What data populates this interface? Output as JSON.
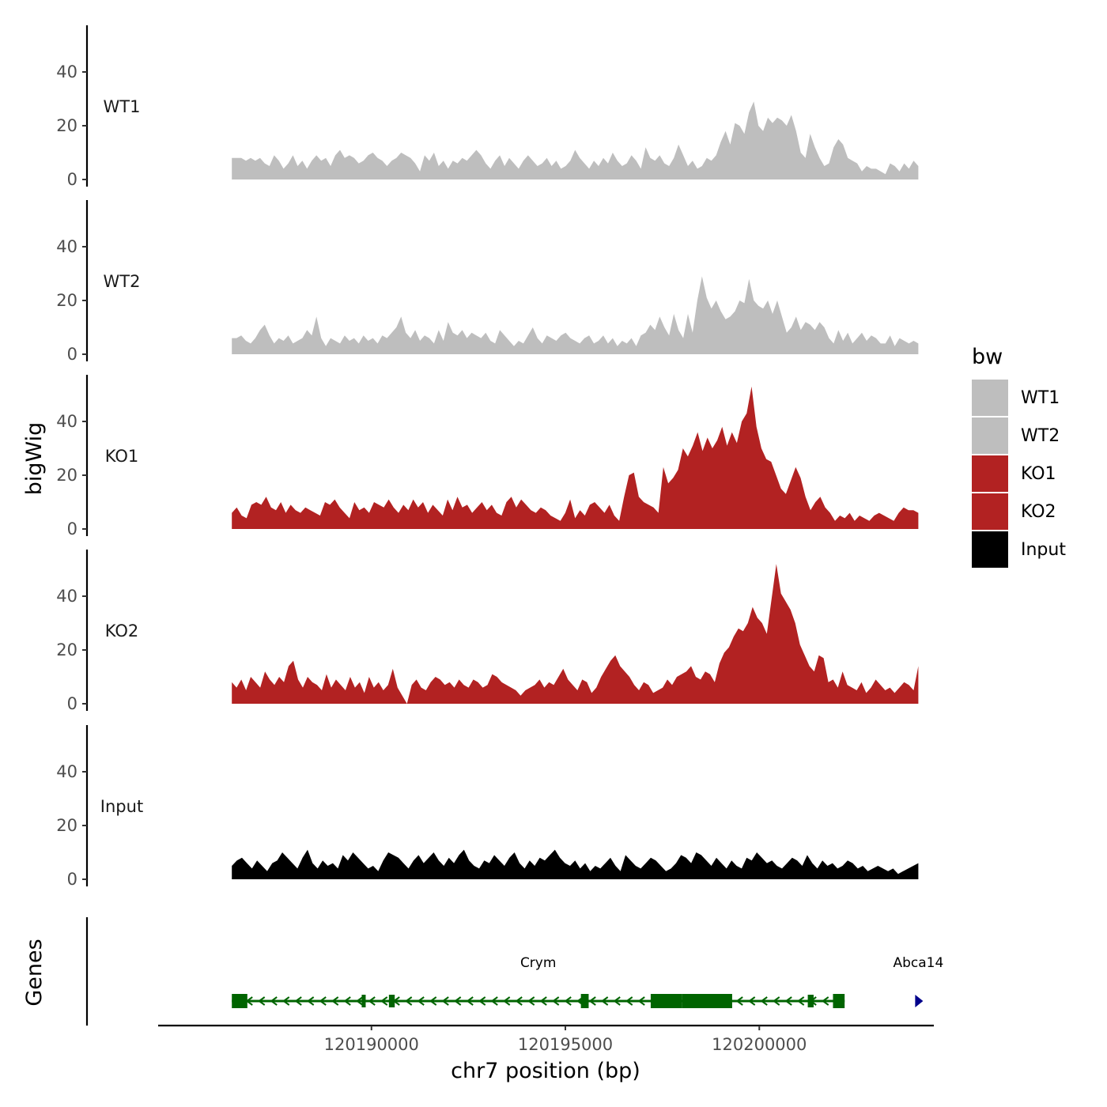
{
  "chart_data": {
    "type": "area",
    "ylabel": "bigWig",
    "xlabel": "chr7 position (bp)",
    "xlim": [
      120184500,
      120204500
    ],
    "x_start": 120186400,
    "x_end": 120204100,
    "ylim": [
      0,
      58
    ],
    "y_ticks": [
      0,
      20,
      40
    ],
    "y_tick_labels": [
      "0",
      "20",
      "40"
    ],
    "x_ticks": [
      120190000,
      120195000,
      120200000
    ],
    "x_tick_labels": [
      "120190000",
      "120195000",
      "120200000"
    ],
    "legend": {
      "title": "bw",
      "position": "right",
      "entries": [
        {
          "name": "WT1",
          "color": "#bebebe"
        },
        {
          "name": "WT2",
          "color": "#bebebe"
        },
        {
          "name": "KO1",
          "color": "#b22222"
        },
        {
          "name": "KO2",
          "color": "#b22222"
        },
        {
          "name": "Input",
          "color": "#000000"
        }
      ]
    },
    "series": [
      {
        "name": "WT1",
        "color": "#bebebe",
        "values": [
          8,
          8,
          8,
          7,
          8,
          7,
          8,
          6,
          5,
          9,
          7,
          4,
          6,
          9,
          5,
          7,
          4,
          7,
          9,
          7,
          8,
          5,
          9,
          11,
          8,
          9,
          8,
          6,
          7,
          9,
          10,
          8,
          7,
          5,
          7,
          8,
          10,
          9,
          8,
          6,
          3,
          9,
          7,
          10,
          5,
          7,
          4,
          7,
          6,
          8,
          7,
          9,
          11,
          9,
          6,
          4,
          7,
          9,
          5,
          8,
          6,
          4,
          7,
          9,
          7,
          5,
          6,
          8,
          5,
          7,
          4,
          5,
          7,
          11,
          8,
          6,
          4,
          7,
          5,
          8,
          6,
          10,
          7,
          5,
          6,
          9,
          7,
          4,
          12,
          8,
          7,
          9,
          6,
          5,
          8,
          13,
          9,
          5,
          7,
          4,
          5,
          8,
          7,
          9,
          14,
          18,
          13,
          21,
          20,
          17,
          25,
          29,
          20,
          18,
          23,
          21,
          23,
          22,
          20,
          24,
          18,
          10,
          8,
          17,
          12,
          8,
          5,
          6,
          12,
          15,
          13,
          8,
          7,
          6,
          3,
          5,
          4,
          4,
          3,
          2,
          6,
          5,
          3,
          6,
          4,
          7,
          5
        ]
      },
      {
        "name": "WT2",
        "color": "#bebebe",
        "values": [
          6,
          6,
          7,
          5,
          4,
          6,
          9,
          11,
          7,
          4,
          6,
          5,
          7,
          4,
          5,
          6,
          9,
          7,
          14,
          6,
          3,
          6,
          5,
          4,
          7,
          5,
          6,
          4,
          7,
          5,
          6,
          4,
          7,
          6,
          8,
          10,
          14,
          8,
          6,
          9,
          5,
          7,
          6,
          4,
          9,
          5,
          12,
          8,
          7,
          9,
          6,
          8,
          7,
          6,
          8,
          5,
          4,
          9,
          7,
          5,
          3,
          5,
          4,
          7,
          10,
          6,
          4,
          7,
          6,
          5,
          7,
          8,
          6,
          5,
          4,
          6,
          7,
          4,
          5,
          7,
          4,
          6,
          3,
          5,
          4,
          6,
          3,
          7,
          8,
          11,
          9,
          14,
          10,
          7,
          15,
          9,
          6,
          15,
          8,
          20,
          29,
          21,
          17,
          20,
          16,
          13,
          14,
          16,
          20,
          19,
          28,
          20,
          18,
          17,
          20,
          15,
          20,
          14,
          8,
          10,
          14,
          9,
          12,
          11,
          9,
          12,
          10,
          6,
          4,
          9,
          5,
          8,
          4,
          6,
          8,
          5,
          7,
          6,
          4,
          4,
          7,
          3,
          6,
          5,
          4,
          5,
          4
        ]
      },
      {
        "name": "KO1",
        "color": "#b22222",
        "values": [
          6,
          8,
          5,
          4,
          9,
          10,
          9,
          12,
          8,
          7,
          10,
          6,
          9,
          7,
          6,
          8,
          7,
          6,
          5,
          10,
          9,
          11,
          8,
          6,
          4,
          10,
          7,
          8,
          6,
          10,
          9,
          8,
          11,
          8,
          6,
          9,
          7,
          11,
          8,
          10,
          6,
          9,
          7,
          5,
          11,
          7,
          12,
          8,
          9,
          6,
          8,
          10,
          7,
          9,
          6,
          5,
          10,
          12,
          8,
          11,
          9,
          7,
          6,
          8,
          7,
          5,
          4,
          3,
          6,
          11,
          4,
          7,
          5,
          9,
          10,
          8,
          6,
          9,
          5,
          3,
          12,
          20,
          21,
          12,
          10,
          9,
          8,
          6,
          23,
          17,
          19,
          22,
          30,
          27,
          31,
          36,
          29,
          34,
          30,
          33,
          38,
          31,
          36,
          32,
          40,
          43,
          53,
          38,
          30,
          26,
          25,
          20,
          15,
          13,
          18,
          23,
          19,
          12,
          7,
          10,
          12,
          8,
          6,
          3,
          5,
          4,
          6,
          3,
          5,
          4,
          3,
          5,
          6,
          5,
          4,
          3,
          6,
          8,
          7,
          7,
          6
        ]
      },
      {
        "name": "KO2",
        "color": "#b22222",
        "values": [
          8,
          6,
          9,
          5,
          10,
          8,
          6,
          12,
          9,
          7,
          10,
          8,
          14,
          16,
          9,
          6,
          10,
          8,
          7,
          5,
          11,
          6,
          9,
          7,
          5,
          10,
          6,
          8,
          4,
          10,
          6,
          8,
          5,
          7,
          13,
          6,
          3,
          0,
          7,
          9,
          6,
          5,
          8,
          10,
          9,
          7,
          8,
          6,
          9,
          7,
          6,
          9,
          8,
          6,
          7,
          11,
          10,
          8,
          7,
          6,
          5,
          3,
          5,
          6,
          7,
          9,
          6,
          8,
          7,
          10,
          13,
          9,
          7,
          5,
          9,
          8,
          4,
          6,
          10,
          13,
          16,
          18,
          14,
          12,
          10,
          7,
          5,
          8,
          7,
          4,
          5,
          6,
          9,
          7,
          10,
          11,
          12,
          14,
          10,
          9,
          12,
          11,
          8,
          15,
          19,
          21,
          25,
          28,
          27,
          30,
          36,
          32,
          30,
          26,
          39,
          52,
          41,
          38,
          35,
          30,
          22,
          18,
          14,
          12,
          18,
          17,
          8,
          9,
          6,
          12,
          7,
          6,
          5,
          8,
          4,
          6,
          9,
          7,
          5,
          6,
          4,
          6,
          8,
          7,
          5,
          14
        ]
      },
      {
        "name": "Input",
        "color": "#000000",
        "values": [
          5,
          7,
          8,
          6,
          4,
          7,
          5,
          3,
          6,
          7,
          10,
          8,
          6,
          4,
          8,
          11,
          6,
          4,
          7,
          5,
          6,
          4,
          9,
          7,
          10,
          8,
          6,
          4,
          5,
          3,
          7,
          10,
          9,
          8,
          6,
          4,
          7,
          9,
          6,
          8,
          10,
          7,
          5,
          8,
          6,
          9,
          11,
          7,
          5,
          4,
          7,
          6,
          9,
          7,
          5,
          8,
          10,
          6,
          4,
          7,
          5,
          8,
          7,
          9,
          11,
          8,
          6,
          5,
          7,
          4,
          6,
          3,
          5,
          4,
          6,
          8,
          5,
          3,
          9,
          7,
          5,
          4,
          6,
          8,
          7,
          5,
          3,
          4,
          6,
          9,
          8,
          6,
          10,
          9,
          7,
          5,
          8,
          6,
          4,
          7,
          5,
          4,
          8,
          7,
          10,
          8,
          6,
          7,
          5,
          4,
          6,
          8,
          7,
          5,
          9,
          6,
          4,
          7,
          5,
          6,
          4,
          5,
          7,
          6,
          4,
          5,
          3,
          4,
          5,
          4,
          3,
          4,
          2,
          3,
          4,
          5,
          6
        ]
      }
    ],
    "genes_track_label": "Genes",
    "genes": [
      {
        "name": "Crym",
        "color": "#006400",
        "start": 120186400,
        "end": 120202200,
        "strand": "-",
        "exons": [
          [
            120186400,
            120186800
          ],
          [
            120189750,
            120189850
          ],
          [
            120190450,
            120190600
          ],
          [
            120195400,
            120195600
          ],
          [
            120197200,
            120198000
          ],
          [
            120198000,
            120199300
          ],
          [
            120201250,
            120201400
          ],
          [
            120201900,
            120202200
          ]
        ]
      },
      {
        "name": "Abca14",
        "color": "#00008b",
        "start": 120204000,
        "end": 120204200,
        "strand": "+",
        "exons": [
          [
            120204000,
            120204200
          ]
        ]
      }
    ]
  }
}
